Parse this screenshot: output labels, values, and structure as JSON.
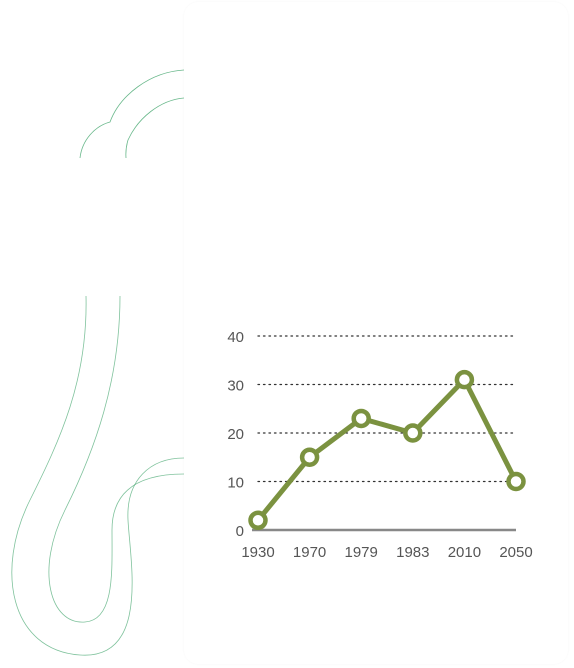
{
  "chart_data": {
    "type": "line",
    "x": [
      "1930",
      "1970",
      "1979",
      "1983",
      "2010",
      "2050"
    ],
    "values": [
      2,
      15,
      23,
      20,
      31,
      10
    ],
    "ylim": [
      0,
      40
    ],
    "yticks": [
      "0",
      "10",
      "20",
      "30",
      "40"
    ],
    "title": "",
    "xlabel": "",
    "ylabel": "",
    "grid": "horizontal dotted",
    "colors": {
      "line": "#7b9240",
      "marker_fill": "#ffffff",
      "grid": "#333333",
      "axis": "#888888",
      "labels": "#555555",
      "decor_stroke": "#2a9a5a"
    }
  }
}
